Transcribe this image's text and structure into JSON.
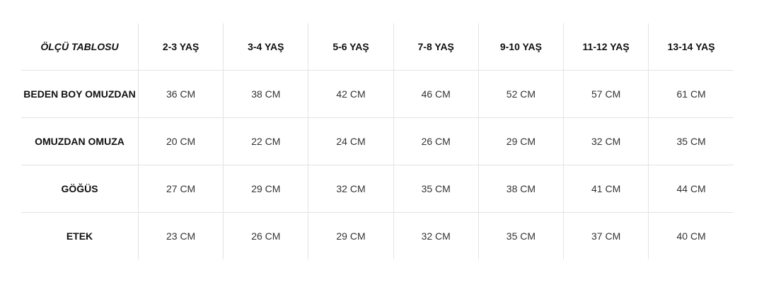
{
  "table": {
    "title": "ÖLÇÜ TABLOSU",
    "columns": [
      "2-3 YAŞ",
      "3-4 YAŞ",
      "5-6 YAŞ",
      "7-8 YAŞ",
      "9-10 YAŞ",
      "11-12 YAŞ",
      "13-14 YAŞ"
    ],
    "rows": [
      {
        "label": "BEDEN BOY OMUZDAN",
        "values": [
          "36 CM",
          "38 CM",
          "42 CM",
          "46 CM",
          "52 CM",
          "57 CM",
          "61 CM"
        ]
      },
      {
        "label": "OMUZDAN OMUZA",
        "values": [
          "20 CM",
          "22 CM",
          "24 CM",
          "26 CM",
          "29 CM",
          "32 CM",
          "35 CM"
        ]
      },
      {
        "label": "GÖĞÜS",
        "values": [
          "27 CM",
          "29 CM",
          "32 CM",
          "35 CM",
          "38 CM",
          "41 CM",
          "44 CM"
        ]
      },
      {
        "label": "ETEK",
        "values": [
          "23 CM",
          "26 CM",
          "29 CM",
          "32 CM",
          "35 CM",
          "37 CM",
          "40 CM"
        ]
      }
    ]
  }
}
